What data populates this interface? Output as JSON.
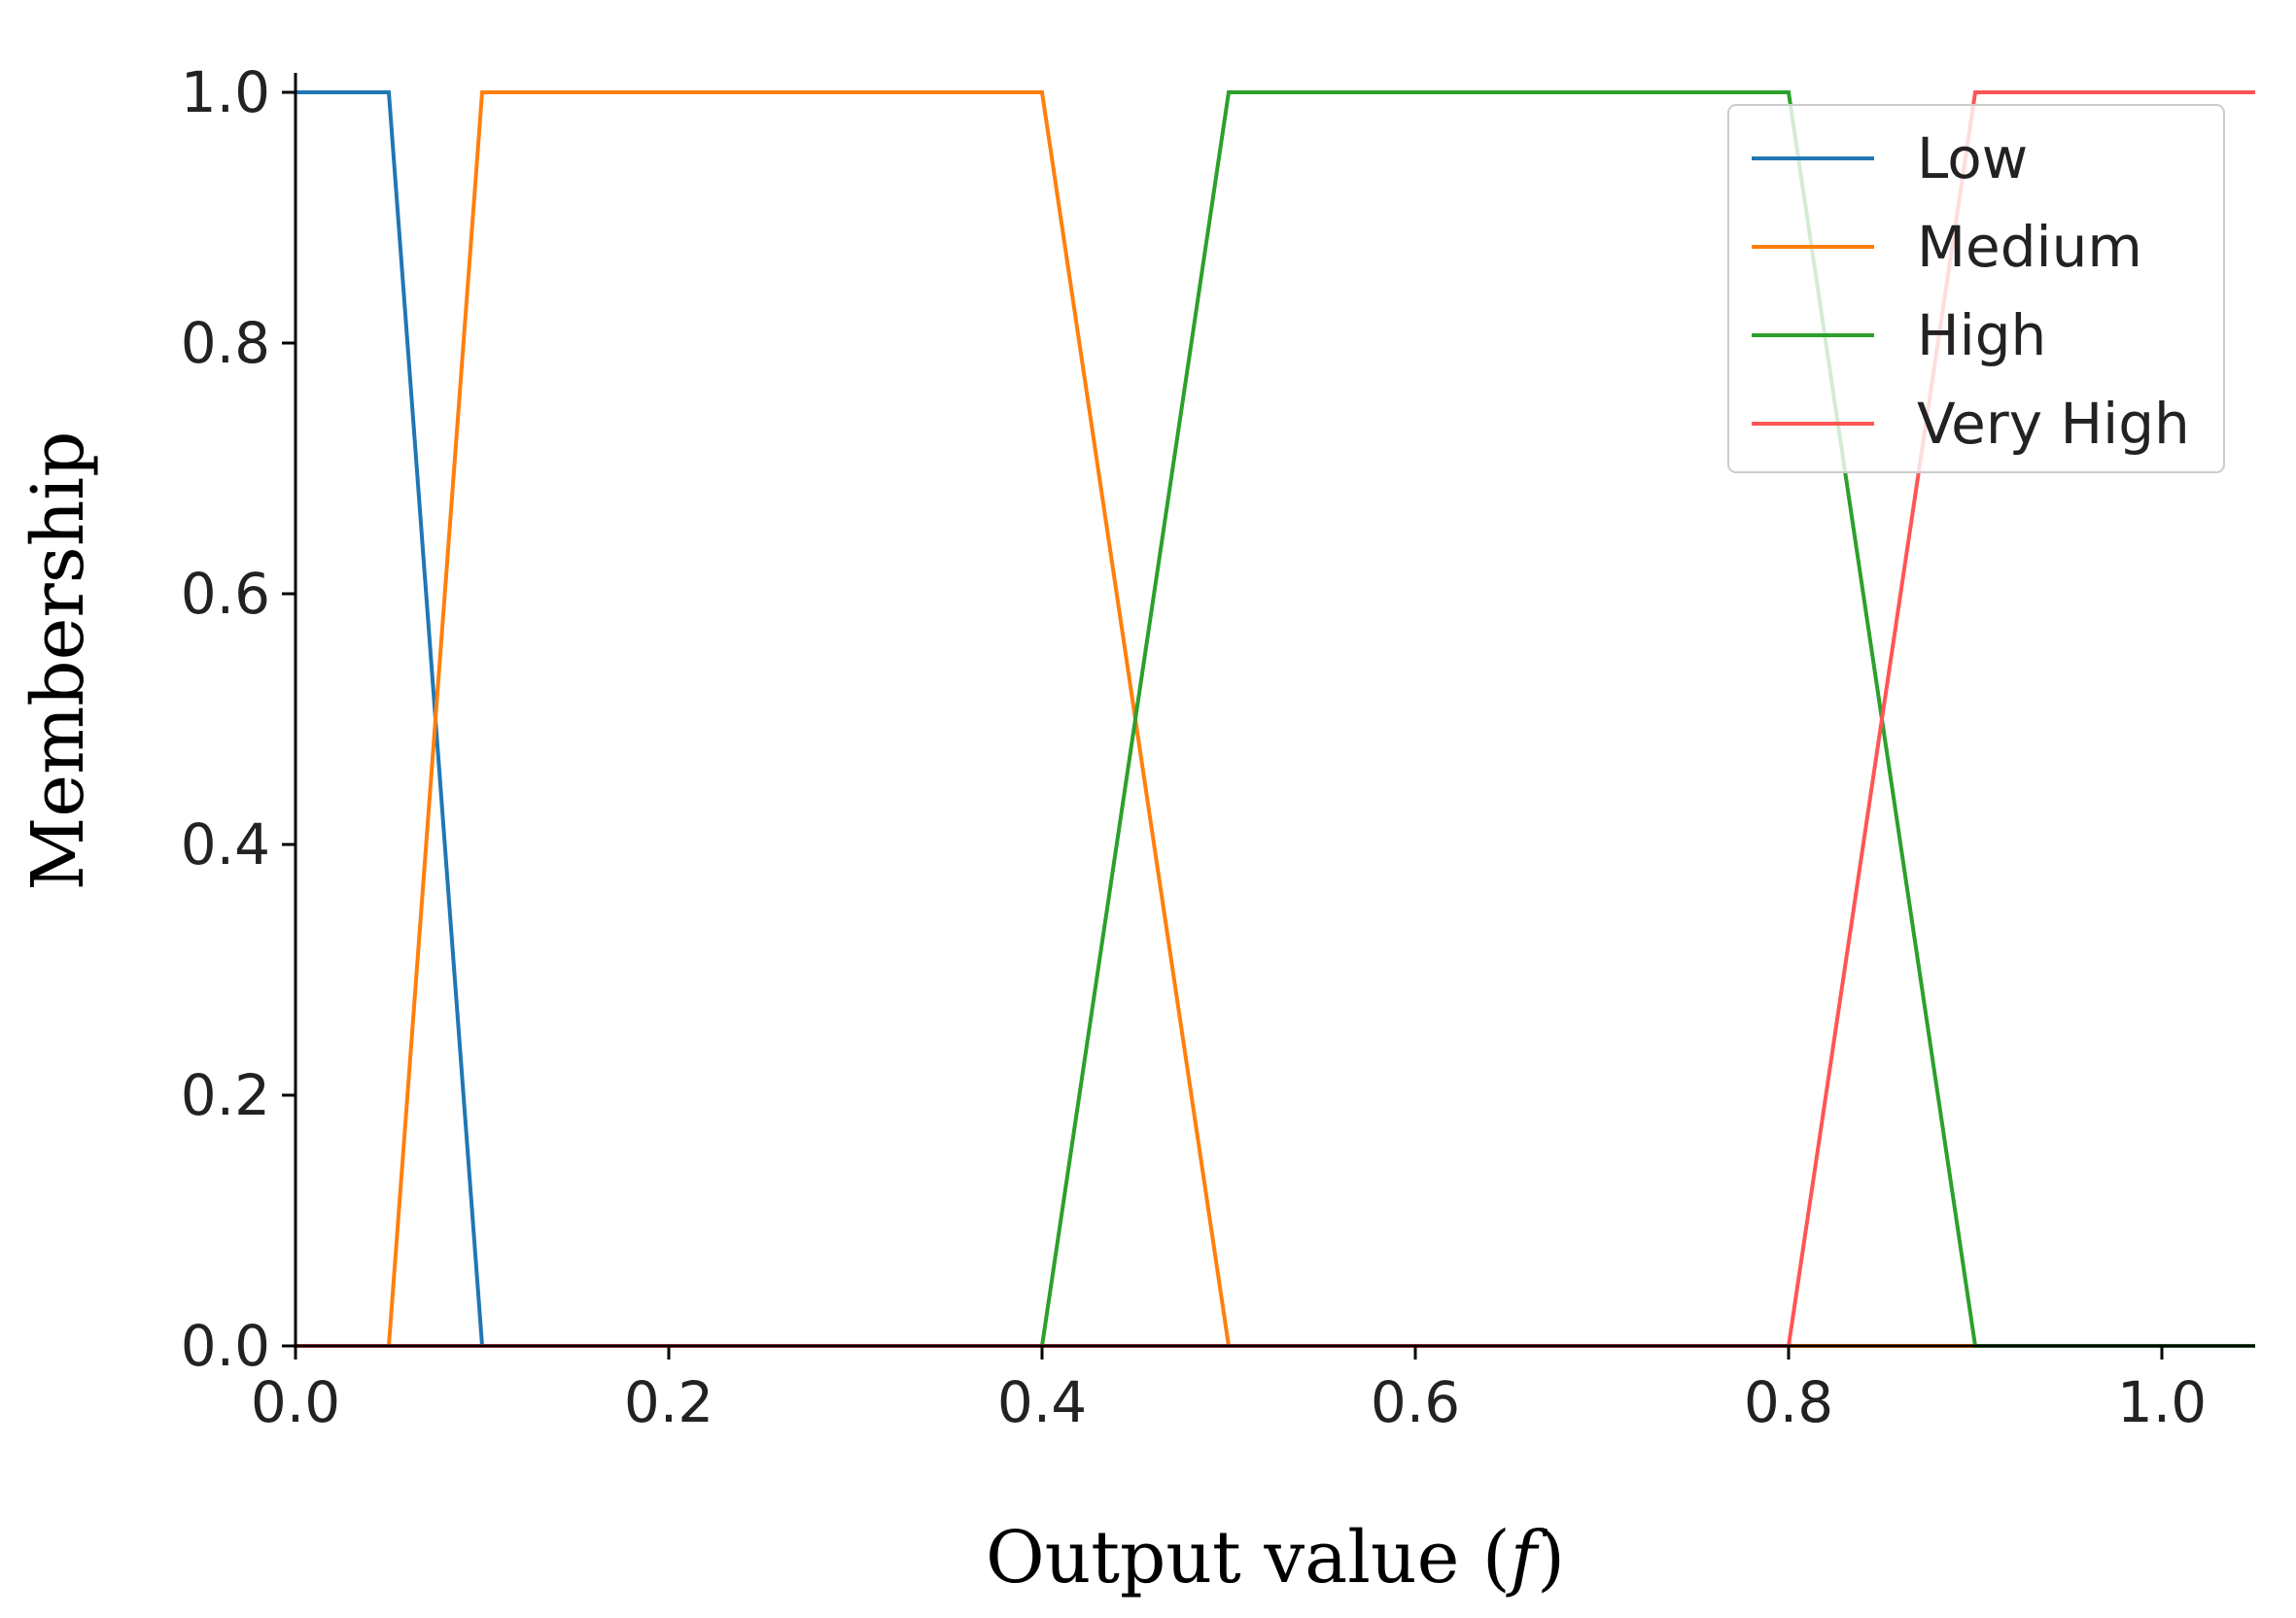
{
  "chart_data": {
    "type": "line",
    "xlabel_prefix": "Output value (",
    "xlabel_var": "f",
    "xlabel_suffix": ")",
    "ylabel": "Membership",
    "xlim": [
      0,
      1.05
    ],
    "ylim": [
      0,
      1
    ],
    "xticks": [
      0.0,
      0.2,
      0.4,
      0.6,
      0.8,
      1.0
    ],
    "yticks": [
      0.0,
      0.2,
      0.4,
      0.6,
      0.8,
      1.0
    ],
    "xtick_labels": [
      "0.0",
      "0.2",
      "0.4",
      "0.6",
      "0.8",
      "1.0"
    ],
    "ytick_labels": [
      "0.0",
      "0.2",
      "0.4",
      "0.6",
      "0.8",
      "1.0"
    ],
    "grid": false,
    "legend_position": "top-right",
    "series": [
      {
        "name": "Low",
        "color": "#1f77b4",
        "points": [
          [
            0,
            1
          ],
          [
            0.05,
            1
          ],
          [
            0.1,
            0
          ],
          [
            1.05,
            0
          ]
        ]
      },
      {
        "name": "Medium",
        "color": "#ff7f0e",
        "points": [
          [
            0,
            0
          ],
          [
            0.05,
            0
          ],
          [
            0.1,
            1
          ],
          [
            0.4,
            1
          ],
          [
            0.5,
            0
          ],
          [
            1.05,
            0
          ]
        ]
      },
      {
        "name": "High",
        "color": "#2ca02c",
        "points": [
          [
            0,
            0
          ],
          [
            0.4,
            0
          ],
          [
            0.5,
            1
          ],
          [
            0.8,
            1
          ],
          [
            0.9,
            0
          ],
          [
            1.05,
            0
          ]
        ]
      },
      {
        "name": "Very High",
        "color": "#ff5555",
        "points": [
          [
            0,
            0
          ],
          [
            0.8,
            0
          ],
          [
            0.9,
            1
          ],
          [
            1.05,
            1
          ]
        ]
      }
    ]
  }
}
